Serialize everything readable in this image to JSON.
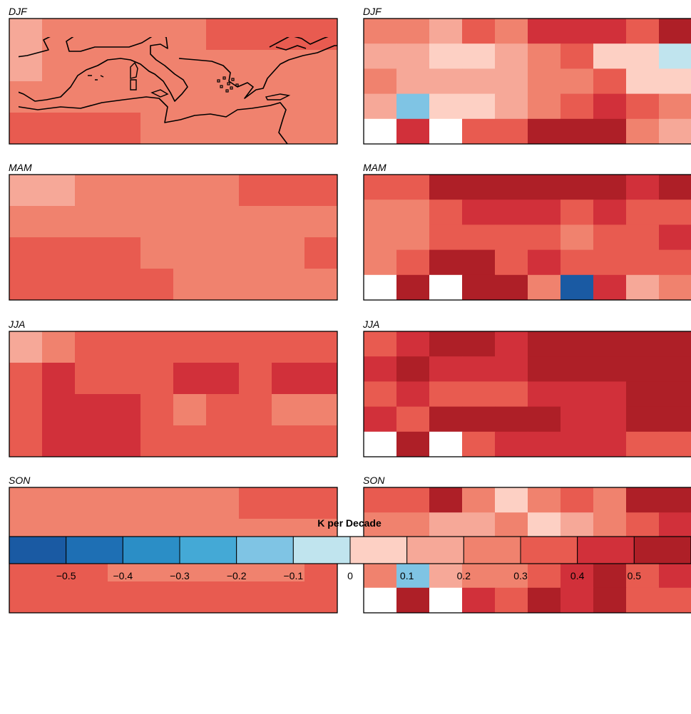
{
  "panels": [
    {
      "season": "DJF",
      "label": "DJF"
    },
    {
      "season": "DJF",
      "label": "DJF"
    },
    {
      "season": "MAM",
      "label": "MAM"
    },
    {
      "season": "MAM",
      "label": "MAM"
    },
    {
      "season": "JJA",
      "label": "JJA"
    },
    {
      "season": "JJA",
      "label": "JJA"
    },
    {
      "season": "SON",
      "label": "SON"
    },
    {
      "season": "SON",
      "label": "SON"
    }
  ],
  "colorbar": {
    "title": "K per Decade",
    "bounds": [
      -0.6,
      -0.5,
      -0.4,
      -0.3,
      -0.2,
      -0.1,
      0,
      0.1,
      0.2,
      0.3,
      0.4,
      0.5,
      0.6
    ],
    "colors": [
      "#1a5aa3",
      "#1e6fb4",
      "#2b8ec6",
      "#44a9d6",
      "#7fc4e4",
      "#c0e4ee",
      "#fdd0c4",
      "#f6a898",
      "#f0826e",
      "#e85b50",
      "#d1303a",
      "#ae1f27"
    ],
    "tick_labels": [
      "−0.5",
      "−0.4",
      "−0.3",
      "−0.2",
      "−0.1",
      "0",
      "0.1",
      "0.2",
      "0.3",
      "0.4",
      "0.5"
    ]
  },
  "chart_data": [
    {
      "type": "heatmap",
      "title": "DJF",
      "rows": 4,
      "cols": 10,
      "values": [
        [
          0.15,
          0.25,
          0.25,
          0.25,
          0.25,
          0.25,
          0.35,
          0.35,
          0.35,
          0.35
        ],
        [
          0.15,
          0.25,
          0.25,
          0.25,
          0.25,
          0.25,
          0.25,
          0.25,
          0.25,
          0.25
        ],
        [
          0.25,
          0.25,
          0.25,
          0.25,
          0.25,
          0.25,
          0.25,
          0.25,
          0.25,
          0.25
        ],
        [
          0.35,
          0.35,
          0.35,
          0.35,
          0.25,
          0.25,
          0.25,
          0.25,
          0.25,
          0.25
        ]
      ]
    },
    {
      "type": "heatmap",
      "title": "DJF",
      "rows": 5,
      "cols": 10,
      "values": [
        [
          0.25,
          0.25,
          0.15,
          0.35,
          0.25,
          0.45,
          0.45,
          0.45,
          0.35,
          0.55
        ],
        [
          0.15,
          0.15,
          0.05,
          0.05,
          0.15,
          0.25,
          0.35,
          0.05,
          0.05,
          -0.05
        ],
        [
          0.25,
          0.15,
          0.15,
          0.15,
          0.15,
          0.25,
          0.25,
          0.35,
          0.05,
          0.05
        ],
        [
          0.15,
          -0.15,
          0.05,
          0.05,
          0.15,
          0.25,
          0.35,
          0.45,
          0.35,
          0.25
        ],
        [
          null,
          0.45,
          null,
          0.35,
          0.35,
          0.55,
          0.55,
          0.55,
          0.25,
          0.15
        ]
      ]
    },
    {
      "type": "heatmap",
      "title": "MAM",
      "rows": 4,
      "cols": 10,
      "values": [
        [
          0.15,
          0.15,
          0.25,
          0.25,
          0.25,
          0.25,
          0.25,
          0.35,
          0.35,
          0.35
        ],
        [
          0.25,
          0.25,
          0.25,
          0.25,
          0.25,
          0.25,
          0.25,
          0.25,
          0.25,
          0.25
        ],
        [
          0.35,
          0.35,
          0.35,
          0.35,
          0.25,
          0.25,
          0.25,
          0.25,
          0.25,
          0.35
        ],
        [
          0.35,
          0.35,
          0.35,
          0.35,
          0.35,
          0.25,
          0.25,
          0.25,
          0.25,
          0.25
        ]
      ]
    },
    {
      "type": "heatmap",
      "title": "MAM",
      "rows": 5,
      "cols": 10,
      "values": [
        [
          0.35,
          0.35,
          0.55,
          0.55,
          0.55,
          0.55,
          0.55,
          0.55,
          0.45,
          0.55
        ],
        [
          0.25,
          0.25,
          0.35,
          0.45,
          0.45,
          0.45,
          0.35,
          0.45,
          0.35,
          0.35
        ],
        [
          0.25,
          0.25,
          0.35,
          0.35,
          0.35,
          0.35,
          0.25,
          0.35,
          0.35,
          0.45
        ],
        [
          0.25,
          0.35,
          0.55,
          0.55,
          0.35,
          0.45,
          0.35,
          0.35,
          0.35,
          0.35
        ],
        [
          null,
          0.55,
          null,
          0.55,
          0.55,
          0.25,
          -0.55,
          0.45,
          0.15,
          0.25
        ]
      ]
    },
    {
      "type": "heatmap",
      "title": "JJA",
      "rows": 4,
      "cols": 10,
      "values": [
        [
          0.15,
          0.25,
          0.35,
          0.35,
          0.35,
          0.35,
          0.35,
          0.35,
          0.35,
          0.35
        ],
        [
          0.35,
          0.45,
          0.35,
          0.35,
          0.35,
          0.45,
          0.45,
          0.35,
          0.45,
          0.45
        ],
        [
          0.35,
          0.45,
          0.45,
          0.45,
          0.35,
          0.25,
          0.35,
          0.35,
          0.25,
          0.25
        ],
        [
          0.35,
          0.45,
          0.45,
          0.45,
          0.35,
          0.35,
          0.35,
          0.35,
          0.35,
          0.35
        ]
      ]
    },
    {
      "type": "heatmap",
      "title": "JJA",
      "rows": 5,
      "cols": 10,
      "values": [
        [
          0.35,
          0.45,
          0.55,
          0.55,
          0.45,
          0.55,
          0.55,
          0.55,
          0.55,
          0.55
        ],
        [
          0.45,
          0.55,
          0.45,
          0.45,
          0.45,
          0.55,
          0.55,
          0.55,
          0.55,
          0.55
        ],
        [
          0.35,
          0.45,
          0.35,
          0.35,
          0.35,
          0.45,
          0.45,
          0.45,
          0.55,
          0.55
        ],
        [
          0.45,
          0.35,
          0.55,
          0.55,
          0.55,
          0.55,
          0.45,
          0.45,
          0.55,
          0.55
        ],
        [
          null,
          0.55,
          null,
          0.35,
          0.45,
          0.45,
          0.45,
          0.45,
          0.35,
          0.35
        ]
      ]
    },
    {
      "type": "heatmap",
      "title": "SON",
      "rows": 4,
      "cols": 10,
      "values": [
        [
          0.25,
          0.25,
          0.25,
          0.25,
          0.25,
          0.25,
          0.25,
          0.35,
          0.35,
          0.35
        ],
        [
          0.25,
          0.25,
          0.25,
          0.25,
          0.25,
          0.25,
          0.25,
          0.25,
          0.25,
          0.25
        ],
        [
          0.35,
          0.35,
          0.35,
          0.25,
          0.25,
          0.25,
          0.25,
          0.25,
          0.25,
          0.35
        ],
        [
          0.35,
          0.35,
          0.35,
          0.35,
          0.35,
          0.35,
          0.35,
          0.35,
          0.35,
          0.35
        ]
      ]
    },
    {
      "type": "heatmap",
      "title": "SON",
      "rows": 5,
      "cols": 10,
      "values": [
        [
          0.35,
          0.35,
          0.55,
          0.25,
          0.05,
          0.25,
          0.35,
          0.25,
          0.55,
          0.55
        ],
        [
          0.25,
          0.25,
          0.15,
          0.15,
          0.25,
          0.05,
          0.15,
          0.25,
          0.35,
          0.45
        ],
        [
          0.25,
          0.05,
          0.15,
          0.15,
          0.15,
          0.15,
          0.25,
          0.35,
          0.35,
          0.45
        ],
        [
          0.25,
          -0.15,
          0.15,
          0.25,
          0.25,
          0.35,
          0.45,
          0.55,
          0.35,
          0.45
        ],
        [
          null,
          0.55,
          null,
          0.45,
          0.35,
          0.55,
          0.45,
          0.55,
          0.35,
          0.35
        ]
      ]
    }
  ]
}
